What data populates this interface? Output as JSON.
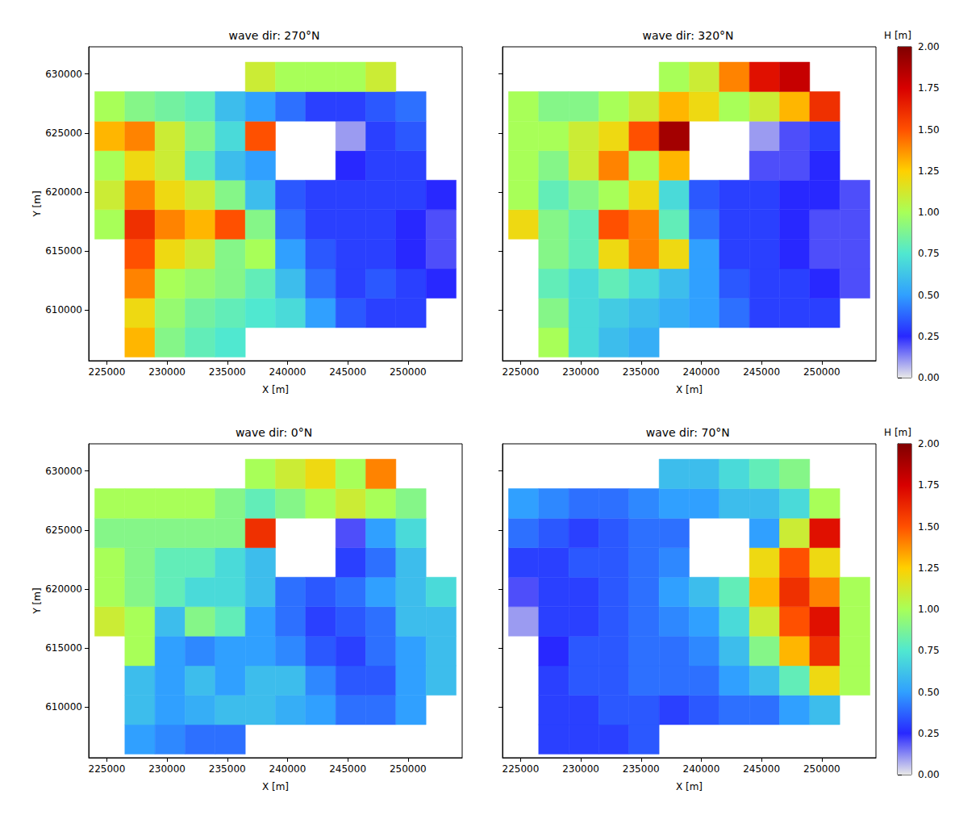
{
  "chart_data": [
    {
      "type": "heatmap",
      "title": "wave dir: 270°N",
      "xlabel": "X [m]",
      "ylabel": "Y [m]",
      "x": [
        225250,
        227750,
        230250,
        232750,
        235250,
        237750,
        240250,
        242750,
        245250,
        247750,
        250250,
        252750
      ],
      "y": [
        607250,
        609750,
        612250,
        614750,
        617250,
        619750,
        622250,
        624750,
        627250,
        629750
      ],
      "cells": [
        [
          null,
          1.3,
          0.9,
          0.8,
          0.75,
          null,
          null,
          null,
          null,
          null,
          null,
          null
        ],
        [
          null,
          1.2,
          0.95,
          0.85,
          0.8,
          0.75,
          0.7,
          0.5,
          0.35,
          0.3,
          0.3,
          null
        ],
        [
          null,
          1.4,
          1.0,
          0.95,
          0.9,
          0.8,
          0.6,
          0.4,
          0.3,
          0.35,
          0.3,
          0.25
        ],
        [
          null,
          1.5,
          1.2,
          1.1,
          0.9,
          1.0,
          0.5,
          0.35,
          0.3,
          0.3,
          0.25,
          0.2
        ],
        [
          1.0,
          1.6,
          1.4,
          1.3,
          1.5,
          0.9,
          0.4,
          0.3,
          0.3,
          0.3,
          0.25,
          0.2
        ],
        [
          1.1,
          1.4,
          1.2,
          1.1,
          0.9,
          0.6,
          0.35,
          0.3,
          0.3,
          0.3,
          0.3,
          0.25
        ],
        [
          1.0,
          1.2,
          1.1,
          0.8,
          0.6,
          0.5,
          null,
          null,
          0.25,
          0.3,
          0.3,
          null
        ],
        [
          1.3,
          1.4,
          1.1,
          0.9,
          0.7,
          1.5,
          null,
          null,
          0.1,
          0.3,
          0.35,
          null
        ],
        [
          1.0,
          0.9,
          0.85,
          0.8,
          0.6,
          0.5,
          0.4,
          0.3,
          0.3,
          0.35,
          0.4,
          null
        ],
        [
          null,
          null,
          null,
          null,
          null,
          1.1,
          1.0,
          1.0,
          1.0,
          1.1,
          null,
          null
        ]
      ],
      "xlim": [
        223500,
        254500
      ],
      "xticks": [
        225000,
        230000,
        235000,
        240000,
        245000,
        250000
      ],
      "ylim": [
        605700,
        632300
      ],
      "yticks": [
        610000,
        615000,
        620000,
        625000,
        630000
      ]
    },
    {
      "type": "heatmap",
      "title": "wave dir: 320°N",
      "xlabel": "X [m]",
      "x": [
        225250,
        227750,
        230250,
        232750,
        235250,
        237750,
        240250,
        242750,
        245250,
        247750,
        250250,
        252750
      ],
      "y": [
        607250,
        609750,
        612250,
        614750,
        617250,
        619750,
        622250,
        624750,
        627250,
        629750
      ],
      "cells": [
        [
          null,
          1.0,
          0.7,
          0.6,
          0.55,
          null,
          null,
          null,
          null,
          null,
          null,
          null
        ],
        [
          null,
          0.9,
          0.7,
          0.65,
          0.6,
          0.55,
          0.5,
          0.4,
          0.3,
          0.3,
          0.3,
          null
        ],
        [
          null,
          0.8,
          0.7,
          0.8,
          0.7,
          0.6,
          0.5,
          0.35,
          0.3,
          0.3,
          0.25,
          0.2
        ],
        [
          null,
          0.9,
          0.8,
          1.2,
          1.4,
          1.2,
          0.5,
          0.3,
          0.3,
          0.25,
          0.2,
          0.2
        ],
        [
          1.2,
          0.9,
          0.8,
          1.5,
          1.4,
          0.8,
          0.4,
          0.3,
          0.3,
          0.25,
          0.2,
          0.2
        ],
        [
          1.0,
          0.8,
          0.9,
          1.0,
          1.2,
          0.7,
          0.35,
          0.3,
          0.3,
          0.25,
          0.25,
          0.2
        ],
        [
          1.0,
          0.9,
          1.1,
          1.4,
          1.0,
          1.3,
          null,
          null,
          0.2,
          0.2,
          0.25,
          null
        ],
        [
          1.0,
          1.0,
          1.1,
          1.2,
          1.5,
          1.9,
          null,
          null,
          0.1,
          0.2,
          0.3,
          null
        ],
        [
          1.0,
          0.9,
          0.9,
          1.0,
          1.1,
          1.3,
          1.2,
          1.0,
          1.1,
          1.3,
          1.6,
          null
        ],
        [
          null,
          null,
          null,
          null,
          null,
          1.0,
          1.1,
          1.4,
          1.7,
          1.8,
          null,
          null
        ]
      ],
      "xlim": [
        223500,
        254500
      ],
      "xticks": [
        225000,
        230000,
        235000,
        240000,
        245000,
        250000
      ],
      "ylim": [
        605700,
        632300
      ],
      "yticks": [
        610000,
        615000,
        620000,
        625000,
        630000
      ],
      "tick_labels": "x",
      "colorbar": {
        "label": "H [m]",
        "range": [
          0,
          2
        ],
        "ticks": [
          {
            "value": 0,
            "label": "0.00"
          },
          {
            "value": 0.25,
            "label": "0.25"
          },
          {
            "value": 0.5,
            "label": "0.50"
          },
          {
            "value": 0.75,
            "label": "0.75"
          },
          {
            "value": 1,
            "label": "1.00"
          },
          {
            "value": 1.25,
            "label": "1.25"
          },
          {
            "value": 1.5,
            "label": "1.50"
          },
          {
            "value": 1.75,
            "label": "1.75"
          },
          {
            "value": 2,
            "label": "2.00"
          }
        ],
        "colors": [
          "#e8e8e8",
          "#2828ff",
          "#30a0ff",
          "#50e8d0",
          "#a8ff58",
          "#ffd000",
          "#ff5000",
          "#d80000",
          "#800000"
        ]
      }
    },
    {
      "type": "heatmap",
      "title": "wave dir: 0°N",
      "xlabel": "X [m]",
      "ylabel": "Y [m]",
      "x": [
        225250,
        227750,
        230250,
        232750,
        235250,
        237750,
        240250,
        242750,
        245250,
        247750,
        250250,
        252750
      ],
      "y": [
        607250,
        609750,
        612250,
        614750,
        617250,
        619750,
        622250,
        624750,
        627250,
        629750
      ],
      "cells": [
        [
          null,
          0.5,
          0.45,
          0.4,
          0.4,
          null,
          null,
          null,
          null,
          null,
          null,
          null
        ],
        [
          null,
          0.6,
          0.5,
          0.55,
          0.6,
          0.6,
          0.55,
          0.5,
          0.4,
          0.4,
          0.5,
          null
        ],
        [
          null,
          0.6,
          0.5,
          0.6,
          0.5,
          0.6,
          0.6,
          0.45,
          0.35,
          0.35,
          0.5,
          0.6
        ],
        [
          null,
          1.0,
          0.5,
          0.45,
          0.5,
          0.5,
          0.45,
          0.35,
          0.3,
          0.4,
          0.5,
          0.6
        ],
        [
          1.1,
          1.0,
          0.6,
          0.9,
          0.8,
          0.5,
          0.4,
          0.3,
          0.35,
          0.4,
          0.6,
          0.6
        ],
        [
          1.0,
          0.9,
          0.8,
          0.7,
          0.7,
          0.6,
          0.4,
          0.35,
          0.4,
          0.5,
          0.6,
          0.7
        ],
        [
          1.0,
          0.9,
          0.8,
          0.8,
          0.7,
          0.6,
          null,
          null,
          0.3,
          0.4,
          0.6,
          null
        ],
        [
          0.9,
          0.9,
          0.9,
          0.9,
          0.9,
          1.6,
          null,
          null,
          0.2,
          0.5,
          0.7,
          null
        ],
        [
          1.0,
          1.0,
          1.0,
          1.0,
          0.9,
          0.8,
          0.9,
          1.0,
          1.1,
          1.0,
          0.9,
          null
        ],
        [
          null,
          null,
          null,
          null,
          null,
          1.0,
          1.1,
          1.2,
          1.0,
          1.4,
          null,
          null
        ]
      ],
      "xlim": [
        223500,
        254500
      ],
      "xticks": [
        225000,
        230000,
        235000,
        240000,
        245000,
        250000
      ],
      "ylim": [
        605700,
        632300
      ],
      "yticks": [
        610000,
        615000,
        620000,
        625000,
        630000
      ]
    },
    {
      "type": "heatmap",
      "title": "wave dir: 70°N",
      "xlabel": "X [m]",
      "x": [
        225250,
        227750,
        230250,
        232750,
        235250,
        237750,
        240250,
        242750,
        245250,
        247750,
        250250,
        252750
      ],
      "y": [
        607250,
        609750,
        612250,
        614750,
        617250,
        619750,
        622250,
        624750,
        627250,
        629750
      ],
      "cells": [
        [
          null,
          0.3,
          0.3,
          0.3,
          0.35,
          null,
          null,
          null,
          null,
          null,
          null,
          null
        ],
        [
          null,
          0.3,
          0.3,
          0.35,
          0.35,
          0.3,
          0.35,
          0.4,
          0.4,
          0.5,
          0.6,
          null
        ],
        [
          null,
          0.3,
          0.35,
          0.35,
          0.4,
          0.4,
          0.4,
          0.5,
          0.6,
          0.8,
          1.2,
          1.0
        ],
        [
          null,
          0.25,
          0.35,
          0.35,
          0.4,
          0.4,
          0.45,
          0.6,
          0.9,
          1.3,
          1.6,
          1.0
        ],
        [
          0.1,
          0.3,
          0.3,
          0.35,
          0.4,
          0.45,
          0.5,
          0.7,
          1.1,
          1.5,
          1.7,
          1.0
        ],
        [
          0.2,
          0.3,
          0.3,
          0.35,
          0.4,
          0.5,
          0.6,
          0.8,
          1.3,
          1.6,
          1.4,
          1.0
        ],
        [
          0.3,
          0.3,
          0.35,
          0.35,
          0.4,
          0.45,
          null,
          null,
          1.2,
          1.5,
          1.2,
          null
        ],
        [
          0.4,
          0.35,
          0.3,
          0.35,
          0.4,
          0.4,
          null,
          null,
          0.5,
          1.1,
          1.7,
          null
        ],
        [
          0.5,
          0.45,
          0.4,
          0.4,
          0.45,
          0.5,
          0.5,
          0.6,
          0.6,
          0.7,
          1.0,
          null
        ],
        [
          null,
          null,
          null,
          null,
          null,
          0.6,
          0.6,
          0.7,
          0.8,
          0.9,
          null,
          null
        ]
      ],
      "xlim": [
        223500,
        254500
      ],
      "xticks": [
        225000,
        230000,
        235000,
        240000,
        245000,
        250000
      ],
      "ylim": [
        605700,
        632300
      ],
      "yticks": [
        610000,
        615000,
        620000,
        625000,
        630000
      ],
      "tick_labels": "x",
      "colorbar": {
        "label": "H [m]",
        "range": [
          0,
          2
        ],
        "ticks": [
          {
            "value": 0,
            "label": "0.00"
          },
          {
            "value": 0.25,
            "label": "0.25"
          },
          {
            "value": 0.5,
            "label": "0.50"
          },
          {
            "value": 0.75,
            "label": "0.75"
          },
          {
            "value": 1,
            "label": "1.00"
          },
          {
            "value": 1.25,
            "label": "1.25"
          },
          {
            "value": 1.5,
            "label": "1.50"
          },
          {
            "value": 1.75,
            "label": "1.75"
          },
          {
            "value": 2,
            "label": "2.00"
          }
        ],
        "colors": [
          "#e8e8e8",
          "#2828ff",
          "#30a0ff",
          "#50e8d0",
          "#a8ff58",
          "#ffd000",
          "#ff5000",
          "#d80000",
          "#800000"
        ]
      }
    }
  ]
}
